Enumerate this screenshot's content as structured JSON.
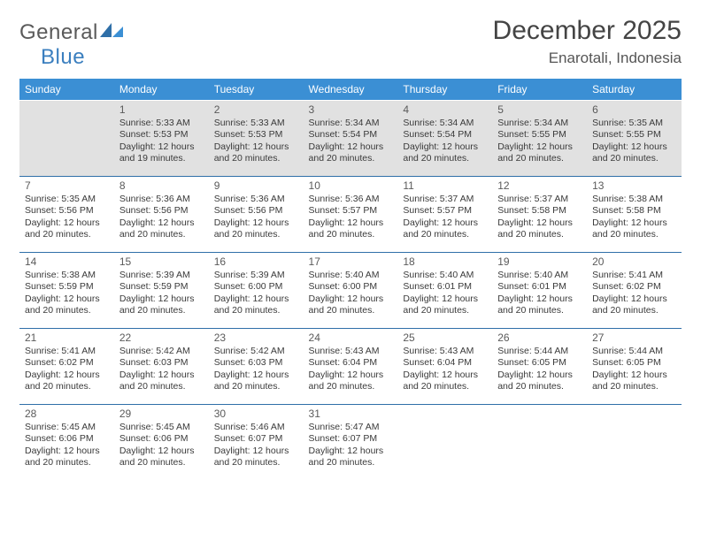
{
  "logo": {
    "part1": "General",
    "part2": "Blue"
  },
  "title": "December 2025",
  "location": "Enarotali, Indonesia",
  "colors": {
    "header_bg": "#3b8fd4",
    "header_text": "#ffffff",
    "row_border": "#2f6fa8",
    "first_row_bg": "#e1e1e1",
    "text": "#3a3a3a",
    "logo_blue": "#3b7fbf",
    "logo_gray": "#5a5a5a"
  },
  "weekdays": [
    "Sunday",
    "Monday",
    "Tuesday",
    "Wednesday",
    "Thursday",
    "Friday",
    "Saturday"
  ],
  "days": [
    {
      "n": 1,
      "sunrise": "5:33 AM",
      "sunset": "5:53 PM",
      "daylight": "12 hours and 19 minutes."
    },
    {
      "n": 2,
      "sunrise": "5:33 AM",
      "sunset": "5:53 PM",
      "daylight": "12 hours and 20 minutes."
    },
    {
      "n": 3,
      "sunrise": "5:34 AM",
      "sunset": "5:54 PM",
      "daylight": "12 hours and 20 minutes."
    },
    {
      "n": 4,
      "sunrise": "5:34 AM",
      "sunset": "5:54 PM",
      "daylight": "12 hours and 20 minutes."
    },
    {
      "n": 5,
      "sunrise": "5:34 AM",
      "sunset": "5:55 PM",
      "daylight": "12 hours and 20 minutes."
    },
    {
      "n": 6,
      "sunrise": "5:35 AM",
      "sunset": "5:55 PM",
      "daylight": "12 hours and 20 minutes."
    },
    {
      "n": 7,
      "sunrise": "5:35 AM",
      "sunset": "5:56 PM",
      "daylight": "12 hours and 20 minutes."
    },
    {
      "n": 8,
      "sunrise": "5:36 AM",
      "sunset": "5:56 PM",
      "daylight": "12 hours and 20 minutes."
    },
    {
      "n": 9,
      "sunrise": "5:36 AM",
      "sunset": "5:56 PM",
      "daylight": "12 hours and 20 minutes."
    },
    {
      "n": 10,
      "sunrise": "5:36 AM",
      "sunset": "5:57 PM",
      "daylight": "12 hours and 20 minutes."
    },
    {
      "n": 11,
      "sunrise": "5:37 AM",
      "sunset": "5:57 PM",
      "daylight": "12 hours and 20 minutes."
    },
    {
      "n": 12,
      "sunrise": "5:37 AM",
      "sunset": "5:58 PM",
      "daylight": "12 hours and 20 minutes."
    },
    {
      "n": 13,
      "sunrise": "5:38 AM",
      "sunset": "5:58 PM",
      "daylight": "12 hours and 20 minutes."
    },
    {
      "n": 14,
      "sunrise": "5:38 AM",
      "sunset": "5:59 PM",
      "daylight": "12 hours and 20 minutes."
    },
    {
      "n": 15,
      "sunrise": "5:39 AM",
      "sunset": "5:59 PM",
      "daylight": "12 hours and 20 minutes."
    },
    {
      "n": 16,
      "sunrise": "5:39 AM",
      "sunset": "6:00 PM",
      "daylight": "12 hours and 20 minutes."
    },
    {
      "n": 17,
      "sunrise": "5:40 AM",
      "sunset": "6:00 PM",
      "daylight": "12 hours and 20 minutes."
    },
    {
      "n": 18,
      "sunrise": "5:40 AM",
      "sunset": "6:01 PM",
      "daylight": "12 hours and 20 minutes."
    },
    {
      "n": 19,
      "sunrise": "5:40 AM",
      "sunset": "6:01 PM",
      "daylight": "12 hours and 20 minutes."
    },
    {
      "n": 20,
      "sunrise": "5:41 AM",
      "sunset": "6:02 PM",
      "daylight": "12 hours and 20 minutes."
    },
    {
      "n": 21,
      "sunrise": "5:41 AM",
      "sunset": "6:02 PM",
      "daylight": "12 hours and 20 minutes."
    },
    {
      "n": 22,
      "sunrise": "5:42 AM",
      "sunset": "6:03 PM",
      "daylight": "12 hours and 20 minutes."
    },
    {
      "n": 23,
      "sunrise": "5:42 AM",
      "sunset": "6:03 PM",
      "daylight": "12 hours and 20 minutes."
    },
    {
      "n": 24,
      "sunrise": "5:43 AM",
      "sunset": "6:04 PM",
      "daylight": "12 hours and 20 minutes."
    },
    {
      "n": 25,
      "sunrise": "5:43 AM",
      "sunset": "6:04 PM",
      "daylight": "12 hours and 20 minutes."
    },
    {
      "n": 26,
      "sunrise": "5:44 AM",
      "sunset": "6:05 PM",
      "daylight": "12 hours and 20 minutes."
    },
    {
      "n": 27,
      "sunrise": "5:44 AM",
      "sunset": "6:05 PM",
      "daylight": "12 hours and 20 minutes."
    },
    {
      "n": 28,
      "sunrise": "5:45 AM",
      "sunset": "6:06 PM",
      "daylight": "12 hours and 20 minutes."
    },
    {
      "n": 29,
      "sunrise": "5:45 AM",
      "sunset": "6:06 PM",
      "daylight": "12 hours and 20 minutes."
    },
    {
      "n": 30,
      "sunrise": "5:46 AM",
      "sunset": "6:07 PM",
      "daylight": "12 hours and 20 minutes."
    },
    {
      "n": 31,
      "sunrise": "5:47 AM",
      "sunset": "6:07 PM",
      "daylight": "12 hours and 20 minutes."
    }
  ],
  "labels": {
    "sunrise": "Sunrise:",
    "sunset": "Sunset:",
    "daylight": "Daylight:"
  },
  "layout": {
    "start_weekday": 1,
    "rows": 5
  }
}
